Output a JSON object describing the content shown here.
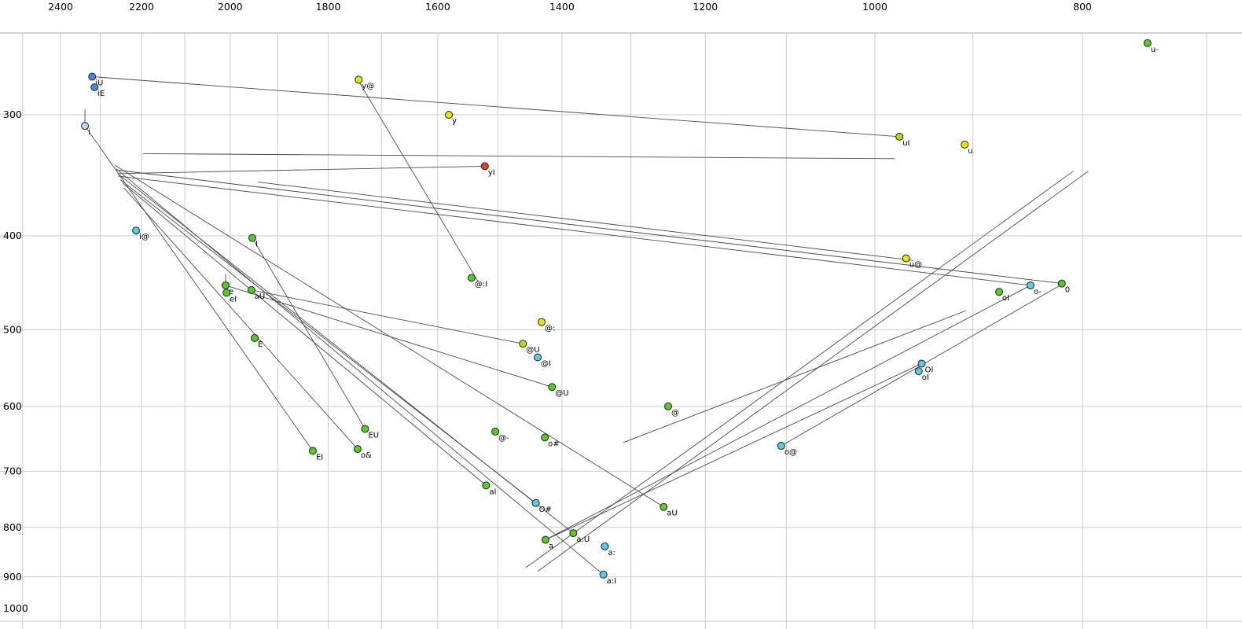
{
  "chart_data": {
    "type": "scatter",
    "title": "",
    "xlabel": "F2 (Hz)",
    "ylabel": "F1 (Hz)",
    "layout": {
      "x_scale": "log-reversed",
      "y_scale": "log-reversed",
      "grid": "on",
      "legend": "none",
      "x_tick_labels": [
        2400,
        2200,
        2000,
        1800,
        1600,
        1400,
        1200,
        1000,
        800
      ],
      "x_grid_ticks": [
        2500,
        2400,
        2300,
        2200,
        2100,
        2000,
        1900,
        1800,
        1700,
        1600,
        1500,
        1400,
        1300,
        1200,
        1100,
        1000,
        900,
        800,
        700
      ],
      "y_tick_labels": [
        300,
        400,
        500,
        600,
        700,
        800,
        900,
        1000
      ],
      "y_grid_ticks": [
        300,
        400,
        500,
        600,
        700,
        800,
        900,
        1000
      ],
      "x_range_visible": [
        2530,
        670
      ],
      "y_range_visible": [
        247,
        1020
      ]
    },
    "colors": {
      "green": "#55cc22",
      "yellow": "#e6e600",
      "yellowgreen": "#bcdc12",
      "cyan": "#58cce8",
      "blue": "#4f86d6",
      "lightblue": "#b8d4ee",
      "red": "#dd4a18",
      "outline": "#222222",
      "line": "#4a4a4a",
      "grid": "#cccccc",
      "border": "#aaaaaa",
      "text": "#000000"
    },
    "points": [
      {
        "label": "u-",
        "f2": 746,
        "f1": 253,
        "color": "green"
      },
      {
        "label": "iU",
        "f2": 2320,
        "f1": 274,
        "color": "blue"
      },
      {
        "label": "iE",
        "f2": 2314,
        "f1": 281,
        "color": "blue"
      },
      {
        "label": "y@",
        "f2": 1742,
        "f1": 276,
        "color": "yellow"
      },
      {
        "label": "y",
        "f2": 1581,
        "f1": 300,
        "color": "yellow"
      },
      {
        "label": "i",
        "f2": 2338,
        "f1": 308,
        "color": "lightblue"
      },
      {
        "label": "uI",
        "f2": 974,
        "f1": 316,
        "color": "yellowgreen"
      },
      {
        "label": "u",
        "f2": 908,
        "f1": 322,
        "color": "yellow"
      },
      {
        "label": "yI",
        "f2": 1521,
        "f1": 339,
        "color": "red"
      },
      {
        "label": "i@",
        "f2": 2213,
        "f1": 395,
        "color": "cyan"
      },
      {
        "label": "I",
        "f2": 1953,
        "f1": 402,
        "color": "green"
      },
      {
        "label": "u@",
        "f2": 967,
        "f1": 422,
        "color": "yellow"
      },
      {
        "label": "@:I",
        "f2": 1543,
        "f1": 442,
        "color": "green"
      },
      {
        "label": "e",
        "f2": 2010,
        "f1": 450,
        "color": "green"
      },
      {
        "label": "eI",
        "f2": 2008,
        "f1": 458,
        "color": "green"
      },
      {
        "label": "aU",
        "f2": 1955,
        "f1": 455,
        "color": "green"
      },
      {
        "label": "o-",
        "f2": 846,
        "f1": 450,
        "color": "cyan"
      },
      {
        "label": "0",
        "f2": 818,
        "f1": 448,
        "color": "green"
      },
      {
        "label": "oI",
        "f2": 875,
        "f1": 457,
        "color": "green"
      },
      {
        "label": "@:",
        "f2": 1431,
        "f1": 491,
        "color": "yellow"
      },
      {
        "label": "E",
        "f2": 1948,
        "f1": 510,
        "color": "green"
      },
      {
        "label": "@U",
        "f2": 1460,
        "f1": 517,
        "color": "yellowgreen"
      },
      {
        "label": "@I",
        "f2": 1437,
        "f1": 534,
        "color": "cyan"
      },
      {
        "label": "OI",
        "f2": 951,
        "f1": 542,
        "color": "cyan"
      },
      {
        "label": "oI",
        "f2": 954,
        "f1": 552,
        "color": "cyan"
      },
      {
        "label": "@U",
        "f2": 1415,
        "f1": 573,
        "color": "green"
      },
      {
        "label": "@",
        "f2": 1249,
        "f1": 600,
        "color": "green"
      },
      {
        "label": "EU",
        "f2": 1730,
        "f1": 633,
        "color": "green"
      },
      {
        "label": "@-",
        "f2": 1504,
        "f1": 637,
        "color": "green"
      },
      {
        "label": "o#",
        "f2": 1426,
        "f1": 646,
        "color": "green"
      },
      {
        "label": "o&",
        "f2": 1744,
        "f1": 664,
        "color": "green"
      },
      {
        "label": "EI",
        "f2": 1830,
        "f1": 667,
        "color": "green"
      },
      {
        "label": "o@",
        "f2": 1106,
        "f1": 659,
        "color": "cyan"
      },
      {
        "label": "aI",
        "f2": 1519,
        "f1": 724,
        "color": "green"
      },
      {
        "label": "O#",
        "f2": 1440,
        "f1": 755,
        "color": "cyan"
      },
      {
        "label": "aU",
        "f2": 1255,
        "f1": 762,
        "color": "green"
      },
      {
        "label": "a:U",
        "f2": 1383,
        "f1": 811,
        "color": "green"
      },
      {
        "label": "a",
        "f2": 1425,
        "f1": 824,
        "color": "green"
      },
      {
        "label": "a:",
        "f2": 1337,
        "f1": 837,
        "color": "cyan"
      },
      {
        "label": "a:I",
        "f2": 1339,
        "f1": 895,
        "color": "cyan"
      }
    ],
    "lines": [
      [
        2320,
        274,
        974,
        316
      ],
      [
        2196,
        329,
        979,
        333
      ],
      [
        1742,
        277,
        1532,
        446
      ],
      [
        1521,
        339,
        2257,
        345
      ],
      [
        2261,
        341,
        1339,
        895
      ],
      [
        2257,
        345,
        1383,
        811
      ],
      [
        2265,
        338,
        1255,
        762
      ],
      [
        2251,
        350,
        1440,
        755
      ],
      [
        2245,
        353,
        1519,
        724
      ],
      [
        2242,
        357,
        1744,
        664
      ],
      [
        2338,
        308,
        1830,
        667
      ],
      [
        2261,
        342,
        818,
        448
      ],
      [
        2257,
        347,
        846,
        450
      ],
      [
        1941,
        352,
        960,
        424
      ],
      [
        1437,
        888,
        795,
        343
      ],
      [
        1455,
        880,
        808,
        343
      ],
      [
        1311,
        654,
        907,
        478
      ],
      [
        1425,
        824,
        951,
        542
      ],
      [
        1425,
        824,
        846,
        450
      ],
      [
        1953,
        402,
        1730,
        633
      ],
      [
        2010,
        450,
        1415,
        573
      ],
      [
        1955,
        455,
        1460,
        517
      ],
      [
        1106,
        659,
        818,
        449
      ],
      [
        2338,
        296,
        2338,
        308
      ],
      [
        2010,
        438,
        2010,
        450
      ]
    ]
  }
}
